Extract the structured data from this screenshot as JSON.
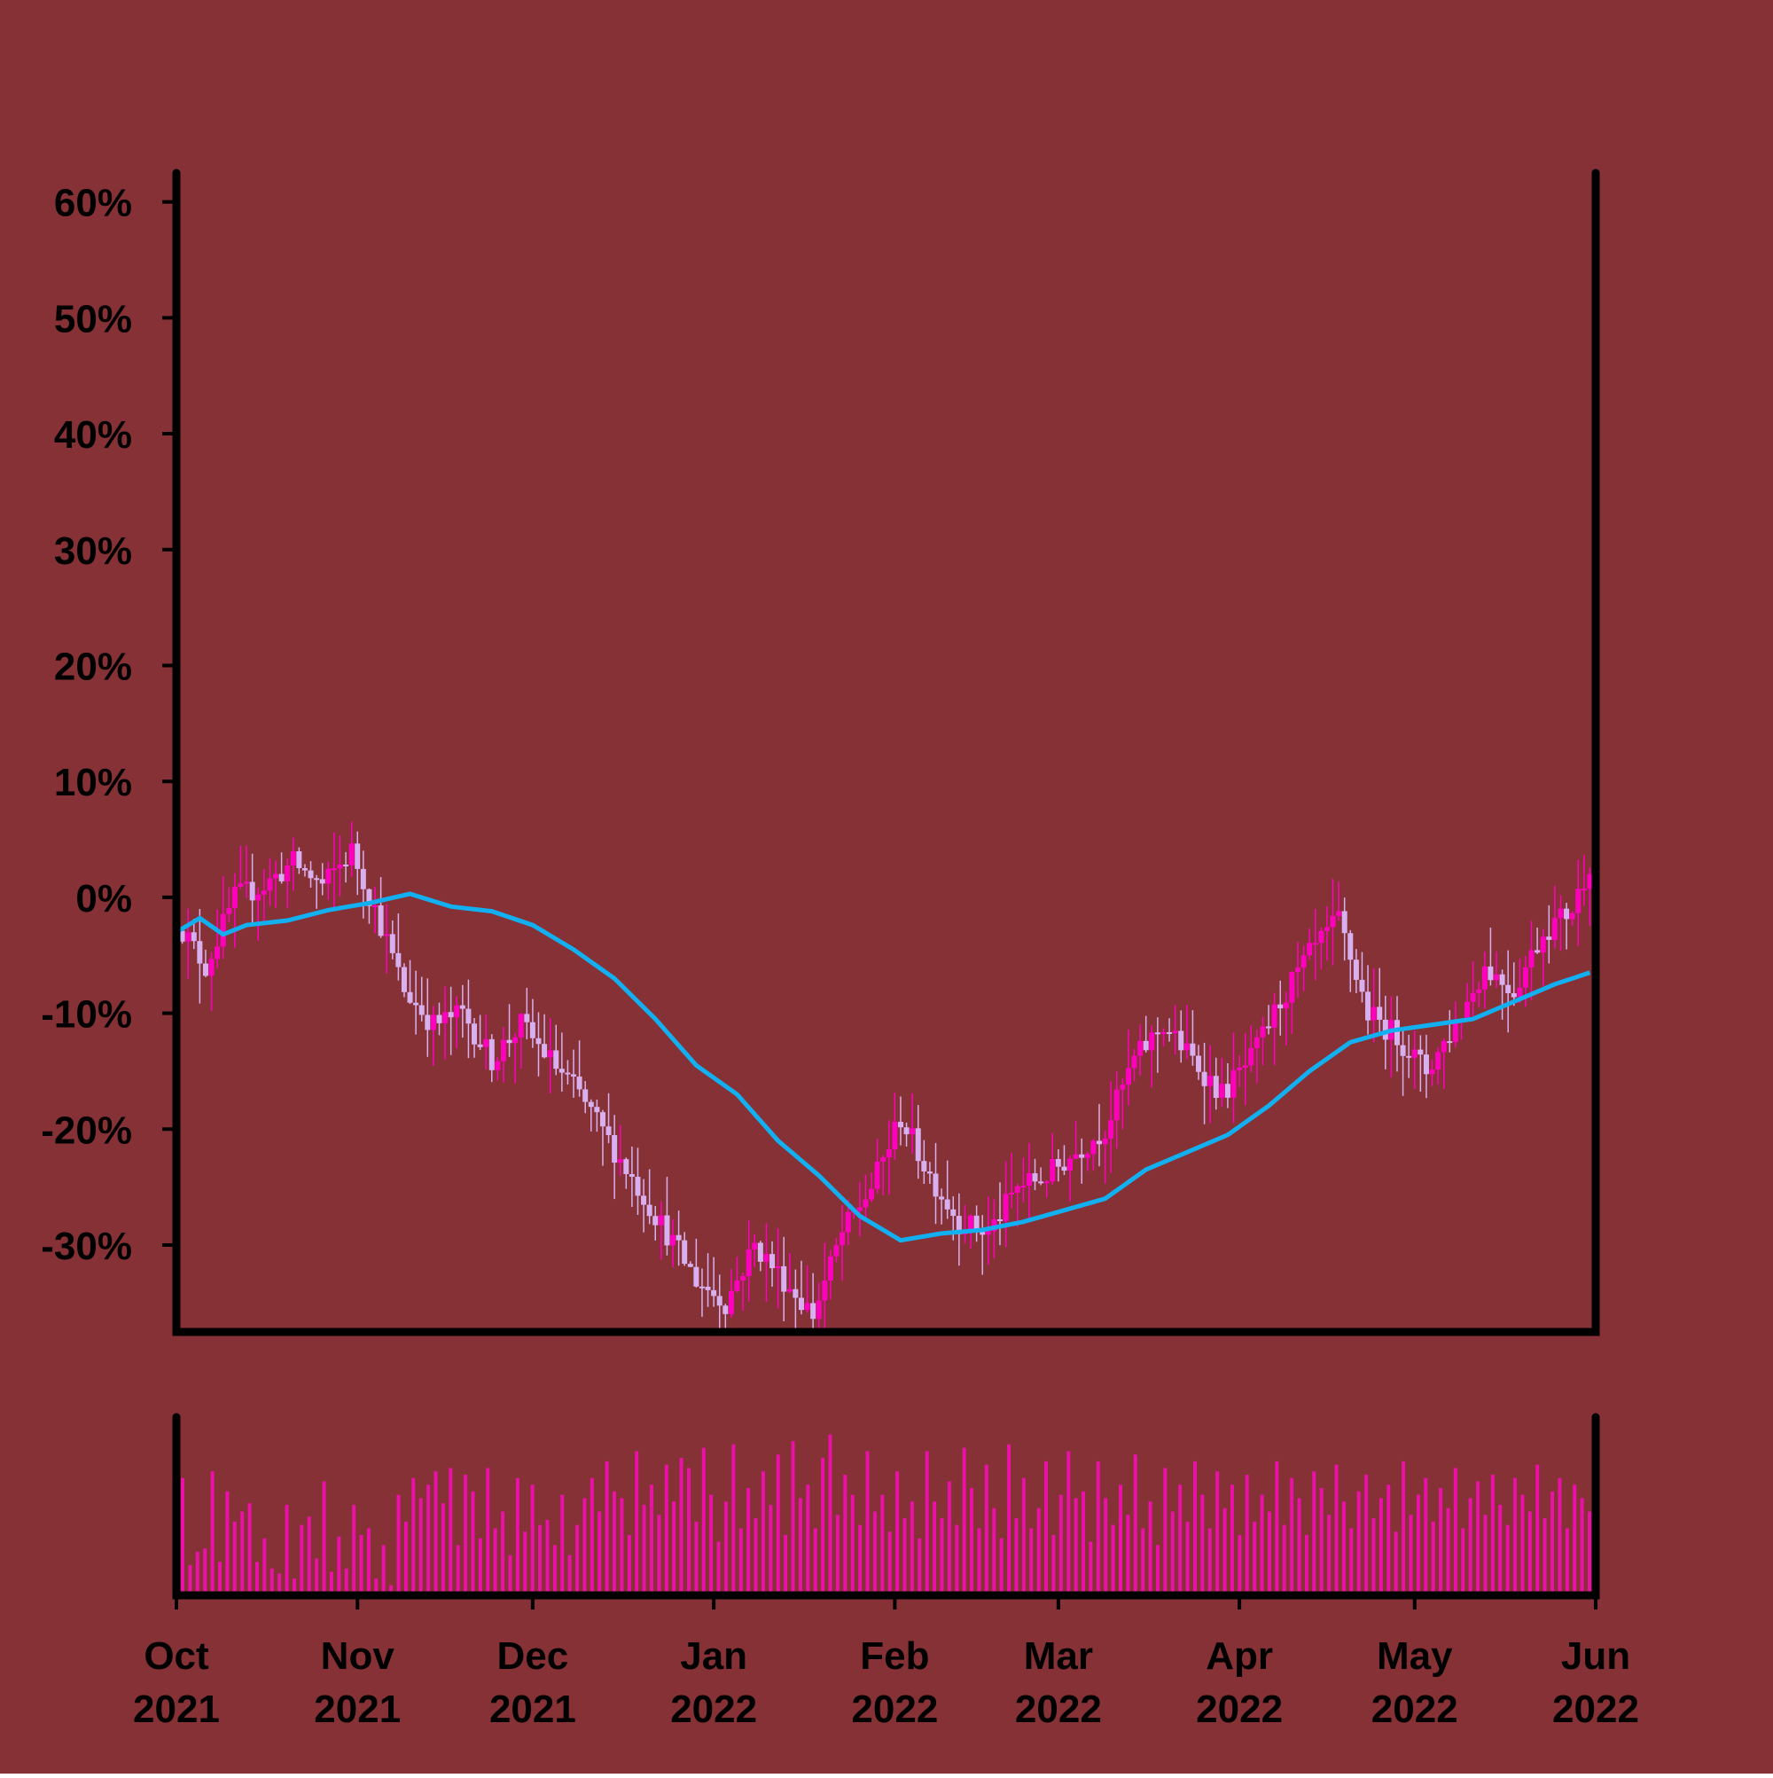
{
  "colors": {
    "background": "#853135",
    "axis": "#000000",
    "candle_up": "#ff00bf",
    "candle_down": "#d8b0f0",
    "moving_average": "#12b0f0",
    "volume": "#ea10a8"
  },
  "chart_data": {
    "type": "candlestick",
    "title": "",
    "xlabel": "",
    "ylabel": "",
    "y_tick_labels": [
      "60%",
      "50%",
      "40%",
      "30%",
      "20%",
      "10%",
      "0%",
      "-10%",
      "-20%",
      "-30%"
    ],
    "y_tick_values": [
      60,
      50,
      40,
      30,
      20,
      10,
      0,
      -10,
      -20,
      -30
    ],
    "ylim": [
      -37.5,
      62.5
    ],
    "xlim": [
      "2021-10-01",
      "2022-06-01"
    ],
    "x_ticks": [
      {
        "month": "Oct",
        "year": "2021",
        "date": "2021-10-01"
      },
      {
        "month": "Nov",
        "year": "2021",
        "date": "2021-11-01"
      },
      {
        "month": "Dec",
        "year": "2021",
        "date": "2021-12-01"
      },
      {
        "month": "Jan",
        "year": "2022",
        "date": "2022-01-01"
      },
      {
        "month": "Feb",
        "year": "2022",
        "date": "2022-02-01"
      },
      {
        "month": "Mar",
        "year": "2022",
        "date": "2022-03-01"
      },
      {
        "month": "Apr",
        "year": "2022",
        "date": "2022-04-01"
      },
      {
        "month": "May",
        "year": "2022",
        "date": "2022-05-01"
      },
      {
        "month": "Jun",
        "year": "2022",
        "date": "2022-06-01"
      }
    ],
    "close_series": {
      "dates": [
        "2021-10-01",
        "2021-10-06",
        "2021-10-11",
        "2021-10-16",
        "2021-10-21",
        "2021-10-26",
        "2021-10-31",
        "2021-11-04",
        "2021-11-09",
        "2021-11-14",
        "2021-11-19",
        "2021-11-24",
        "2021-11-29",
        "2021-12-04",
        "2021-12-09",
        "2021-12-14",
        "2021-12-19",
        "2021-12-24",
        "2021-12-29",
        "2022-01-03",
        "2022-01-08",
        "2022-01-13",
        "2022-01-18",
        "2022-01-23",
        "2022-01-28",
        "2022-02-02",
        "2022-02-07",
        "2022-02-12",
        "2022-02-17",
        "2022-02-22",
        "2022-02-27",
        "2022-03-04",
        "2022-03-09",
        "2022-03-14",
        "2022-03-19",
        "2022-03-24",
        "2022-03-29",
        "2022-04-03",
        "2022-04-08",
        "2022-04-13",
        "2022-04-18",
        "2022-04-23",
        "2022-04-28",
        "2022-05-03",
        "2022-05-08",
        "2022-05-13",
        "2022-05-18",
        "2022-05-23",
        "2022-05-28",
        "2022-05-31"
      ],
      "values": [
        -2,
        -6,
        0,
        1,
        3,
        1,
        4,
        -1,
        -8,
        -11,
        -10,
        -14,
        -11,
        -14,
        -17,
        -21,
        -25,
        -29,
        -33,
        -35,
        -30,
        -33,
        -36,
        -29,
        -25,
        -19,
        -24,
        -28,
        -29,
        -25,
        -24,
        -22,
        -20,
        -14,
        -11,
        -14,
        -17,
        -14,
        -9,
        -5,
        -2,
        -10,
        -12,
        -15,
        -11,
        -6,
        -8,
        -3,
        -1,
        3
      ]
    },
    "moving_average": {
      "dates": [
        "2021-10-01",
        "2021-10-05",
        "2021-10-09",
        "2021-10-13",
        "2021-10-20",
        "2021-10-27",
        "2021-11-03",
        "2021-11-10",
        "2021-11-17",
        "2021-11-24",
        "2021-12-01",
        "2021-12-08",
        "2021-12-15",
        "2021-12-22",
        "2021-12-29",
        "2022-01-05",
        "2022-01-12",
        "2022-01-19",
        "2022-01-26",
        "2022-02-02",
        "2022-02-09",
        "2022-02-16",
        "2022-02-23",
        "2022-03-02",
        "2022-03-09",
        "2022-03-16",
        "2022-03-23",
        "2022-03-30",
        "2022-04-06",
        "2022-04-13",
        "2022-04-20",
        "2022-04-27",
        "2022-05-04",
        "2022-05-11",
        "2022-05-18",
        "2022-05-25",
        "2022-05-31"
      ],
      "values": [
        -3,
        -1.8,
        -3.2,
        -2.4,
        -2,
        -1.1,
        -0.5,
        0.3,
        -0.8,
        -1.2,
        -2.4,
        -4.5,
        -7,
        -10.5,
        -14.5,
        -17,
        -21,
        -24,
        -27.5,
        -29.6,
        -29,
        -28.7,
        -28,
        -27,
        -26,
        -23.5,
        -22,
        -20.5,
        -18,
        -15,
        -12.5,
        -11.5,
        -11,
        -10.5,
        -9,
        -7.5,
        -6.5
      ]
    },
    "volume_scale_note": "",
    "volume_levels": [
      0.7,
      0.18,
      0.26,
      0.28,
      0.74,
      0.2,
      0.62,
      0.44,
      0.5,
      0.55,
      0.2,
      0.34,
      0.16,
      0.13,
      0.54,
      0.1,
      0.42,
      0.47,
      0.22,
      0.68,
      0.14,
      0.35,
      0.16,
      0.54,
      0.36,
      0.4,
      0.1,
      0.3,
      0.06,
      0.6,
      0.44,
      0.7,
      0.58,
      0.66,
      0.74,
      0.55,
      0.76,
      0.3,
      0.72,
      0.62,
      0.34,
      0.76,
      0.4,
      0.5,
      0.24,
      0.7,
      0.38,
      0.66,
      0.42,
      0.45,
      0.3,
      0.6,
      0.24,
      0.42,
      0.58,
      0.7,
      0.5,
      0.8,
      0.62,
      0.58,
      0.36,
      0.86,
      0.54,
      0.66,
      0.48,
      0.78,
      0.56,
      0.82,
      0.76,
      0.44,
      0.88,
      0.6,
      0.32,
      0.56,
      0.9,
      0.4,
      0.64,
      0.46,
      0.74,
      0.54,
      0.84,
      0.36,
      0.92,
      0.58,
      0.66,
      0.4,
      0.82,
      0.96,
      0.48,
      0.72,
      0.6,
      0.42,
      0.86,
      0.5,
      0.6,
      0.38,
      0.74,
      0.46,
      0.56,
      0.34,
      0.86,
      0.56,
      0.46,
      0.68,
      0.42,
      0.88,
      0.64,
      0.4,
      0.78,
      0.52,
      0.34,
      0.9,
      0.46,
      0.7,
      0.4,
      0.52,
      0.8,
      0.36,
      0.6,
      0.86,
      0.58,
      0.62,
      0.32,
      0.8,
      0.58,
      0.42,
      0.66,
      0.48,
      0.84,
      0.4,
      0.56,
      0.3,
      0.76,
      0.5,
      0.66,
      0.44,
      0.8,
      0.6,
      0.4,
      0.74,
      0.52,
      0.66,
      0.36,
      0.72,
      0.44,
      0.6,
      0.5,
      0.8,
      0.42,
      0.7,
      0.58,
      0.36,
      0.74,
      0.64,
      0.48,
      0.78,
      0.56,
      0.4,
      0.62,
      0.72,
      0.46,
      0.58,
      0.66,
      0.38,
      0.8,
      0.48,
      0.6,
      0.7,
      0.44,
      0.64,
      0.52,
      0.76,
      0.4,
      0.58,
      0.68,
      0.48,
      0.72,
      0.54,
      0.42,
      0.7,
      0.6,
      0.5,
      0.78,
      0.46,
      0.62,
      0.7,
      0.4,
      0.66,
      0.58,
      0.5
    ]
  }
}
